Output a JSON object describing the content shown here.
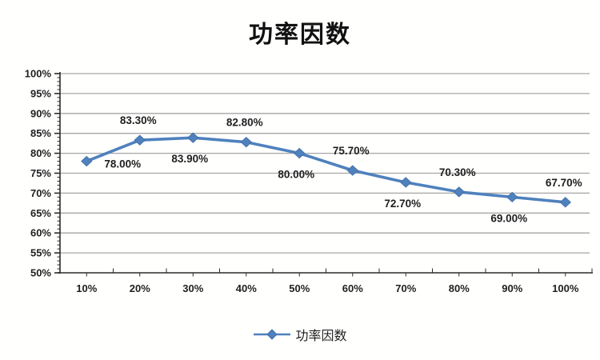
{
  "title": "功率因数",
  "legend": {
    "label": "功率因数"
  },
  "colors": {
    "series_line": "#4f81bd",
    "marker": "#4472a8",
    "gridline": "#a6a6a6",
    "axis": "#2b2b2b",
    "label_text": "#1f1f1f",
    "title_text": "#111111"
  },
  "chart_data": {
    "type": "line",
    "title": "功率因数",
    "categories": [
      "10%",
      "20%",
      "30%",
      "40%",
      "50%",
      "60%",
      "70%",
      "80%",
      "90%",
      "100%"
    ],
    "series": [
      {
        "name": "功率因数",
        "values": [
          78.0,
          83.3,
          83.9,
          82.8,
          80.0,
          75.7,
          72.7,
          70.3,
          69.0,
          67.7
        ]
      }
    ],
    "data_labels": [
      "78.00%",
      "83.30%",
      "83.90%",
      "82.80%",
      "80.00%",
      "75.70%",
      "72.70%",
      "70.30%",
      "69.00%",
      "67.70%"
    ],
    "xlabel": "",
    "ylabel": "",
    "ylim": [
      50,
      100
    ],
    "y_tick_step": 5,
    "y_minor_tick_step": 1,
    "y_tick_labels": [
      "50%",
      "55%",
      "60%",
      "65%",
      "70%",
      "75%",
      "80%",
      "85%",
      "90%",
      "95%",
      "100%"
    ],
    "grid": true,
    "legend_position": "bottom",
    "marker_shape": "diamond"
  }
}
